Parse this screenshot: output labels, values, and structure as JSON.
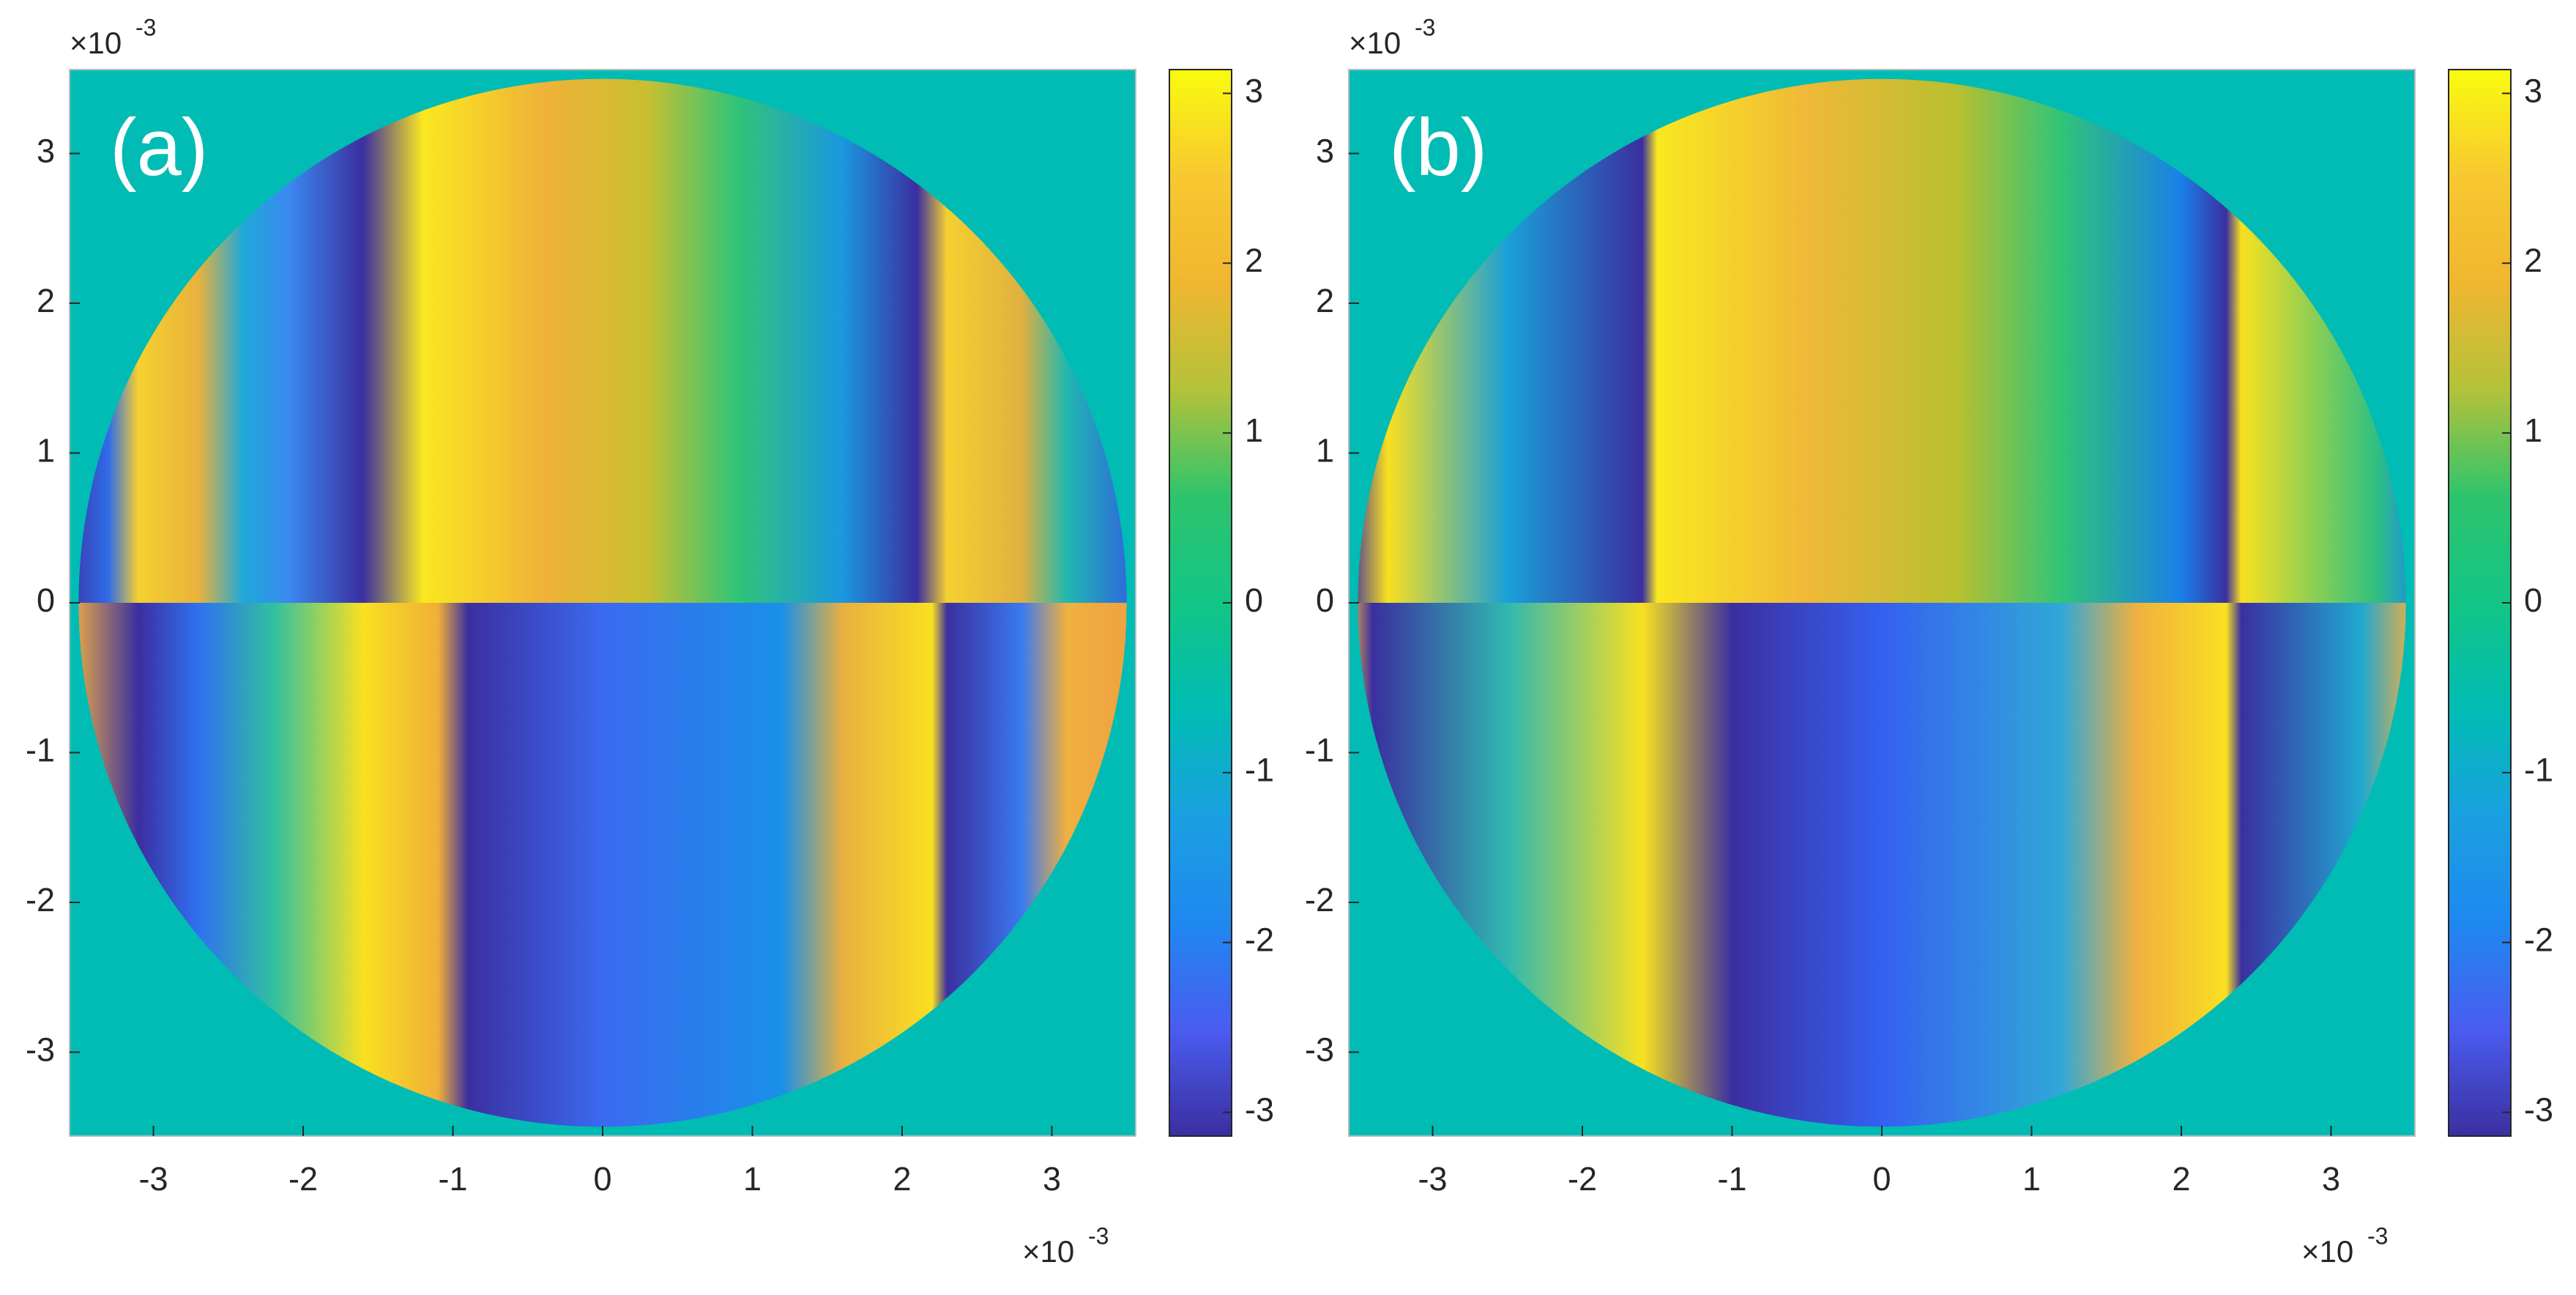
{
  "chart_data": [
    {
      "type": "phase-map",
      "panel_label": "(a)",
      "xlim": [
        -3.56,
        3.56
      ],
      "ylim": [
        -3.56,
        3.56
      ],
      "xticks": [
        -3,
        -2,
        -1,
        0,
        1,
        2,
        3
      ],
      "yticks": [
        -3,
        -2,
        -1,
        0,
        1,
        2,
        3
      ],
      "x_scale_base": "×10",
      "x_scale_power": "-3",
      "y_scale_base": "×10",
      "y_scale_power": "-3",
      "clim": [
        -3.14,
        3.14
      ],
      "cticks": [
        -3,
        -2,
        -1,
        0,
        1,
        2,
        3
      ],
      "colormap": [
        "#3b2fa0",
        "#4a5cf0",
        "#1f88f0",
        "#1aa0e0",
        "#00bcb4",
        "#12c586",
        "#2ec46c",
        "#b4c23a",
        "#f0b630",
        "#f8c830",
        "#f9fb0e"
      ]
    },
    {
      "type": "phase-map",
      "panel_label": "(b)",
      "xlim": [
        -3.56,
        3.56
      ],
      "ylim": [
        -3.56,
        3.56
      ],
      "xticks": [
        -3,
        -2,
        -1,
        0,
        1,
        2,
        3
      ],
      "yticks": [
        -3,
        -2,
        -1,
        0,
        1,
        2,
        3
      ],
      "x_scale_base": "×10",
      "x_scale_power": "-3",
      "y_scale_base": "×10",
      "y_scale_power": "-3",
      "clim": [
        -3.14,
        3.14
      ],
      "cticks": [
        -3,
        -2,
        -1,
        0,
        1,
        2,
        3
      ],
      "colormap": [
        "#3b2fa0",
        "#4a5cf0",
        "#1f88f0",
        "#1aa0e0",
        "#00bcb4",
        "#12c586",
        "#2ec46c",
        "#b4c23a",
        "#f0b630",
        "#f8c830",
        "#f9fb0e"
      ]
    }
  ]
}
